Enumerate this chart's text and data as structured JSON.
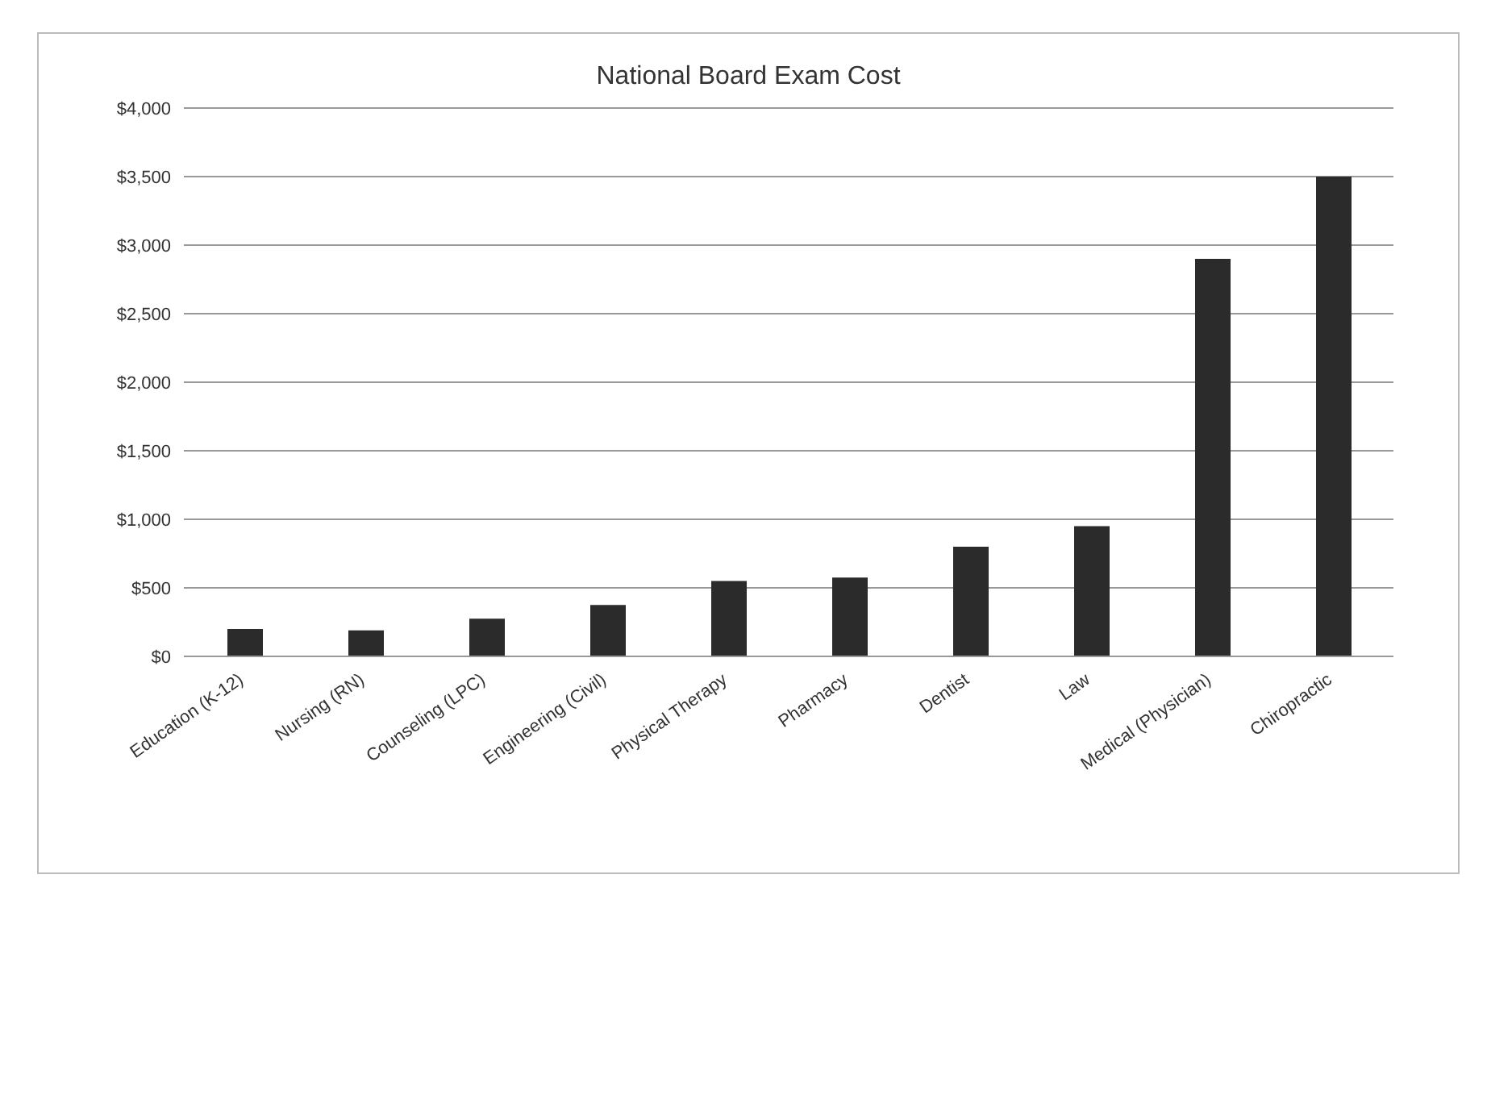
{
  "chart_data": {
    "type": "bar",
    "title": "National Board Exam Cost",
    "categories": [
      "Education (K-12)",
      "Nursing (RN)",
      "Counseling (LPC)",
      "Engineering (Civil)",
      "Physical Therapy",
      "Pharmacy",
      "Dentist",
      "Law",
      "Medical (Physician)",
      "Chiropractic"
    ],
    "values": [
      200,
      190,
      275,
      375,
      550,
      575,
      800,
      950,
      2900,
      3500
    ],
    "color": "#2b2b2b",
    "ylim": [
      0,
      4000
    ],
    "yticks": [
      {
        "value": 0,
        "label": "$0"
      },
      {
        "value": 500,
        "label": "$500"
      },
      {
        "value": 1000,
        "label": "$1,000"
      },
      {
        "value": 1500,
        "label": "$1,500"
      },
      {
        "value": 2000,
        "label": "$2,000"
      },
      {
        "value": 2500,
        "label": "$2,500"
      },
      {
        "value": 3000,
        "label": "$3,000"
      },
      {
        "value": 3500,
        "label": "$3,500"
      },
      {
        "value": 4000,
        "label": "$4,000"
      }
    ],
    "grid": "y",
    "legend": false
  }
}
